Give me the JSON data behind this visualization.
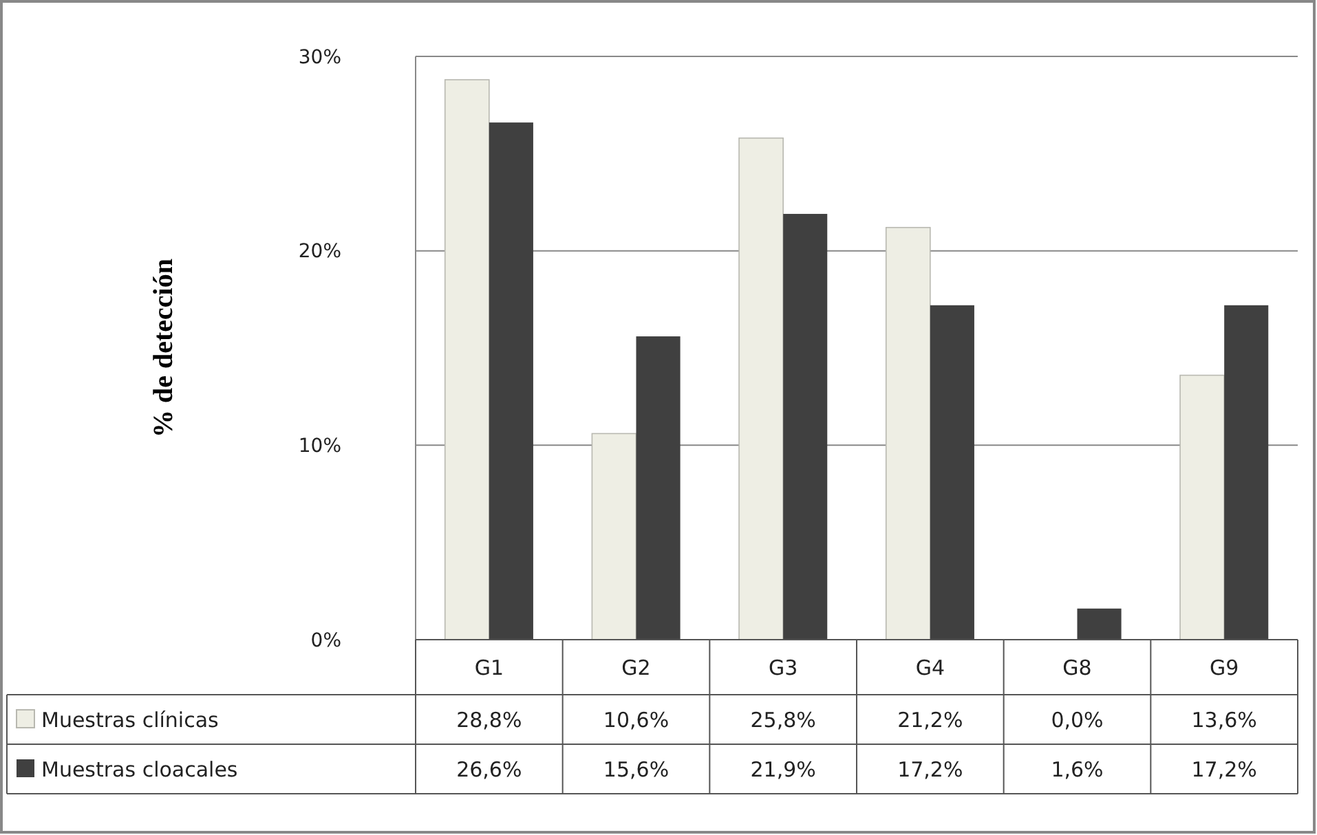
{
  "chart_data": {
    "type": "bar",
    "ylabel": "%  de detección",
    "categories": [
      "G1",
      "G2",
      "G3",
      "G4",
      "G8",
      "G9"
    ],
    "series": [
      {
        "name": "Muestras clínicas",
        "color": "#eeeee4",
        "values": [
          28.8,
          10.6,
          25.8,
          21.2,
          0.0,
          13.6
        ],
        "value_labels": [
          "28,8%",
          "10,6%",
          "25,8%",
          "21,2%",
          "0,0%",
          "13,6%"
        ]
      },
      {
        "name": "Muestras cloacales",
        "color": "#404040",
        "values": [
          26.6,
          15.6,
          21.9,
          17.2,
          1.6,
          17.2
        ],
        "value_labels": [
          "26,6%",
          "15,6%",
          "21,9%",
          "17,2%",
          "1,6%",
          "17,2%"
        ]
      }
    ],
    "ylim": [
      0,
      30
    ],
    "yticks": [
      {
        "value": 0,
        "label": "0%"
      },
      {
        "value": 10,
        "label": "10%"
      },
      {
        "value": 20,
        "label": "20%"
      },
      {
        "value": 30,
        "label": "30%"
      }
    ],
    "grid": "y",
    "legend": "bottom"
  }
}
